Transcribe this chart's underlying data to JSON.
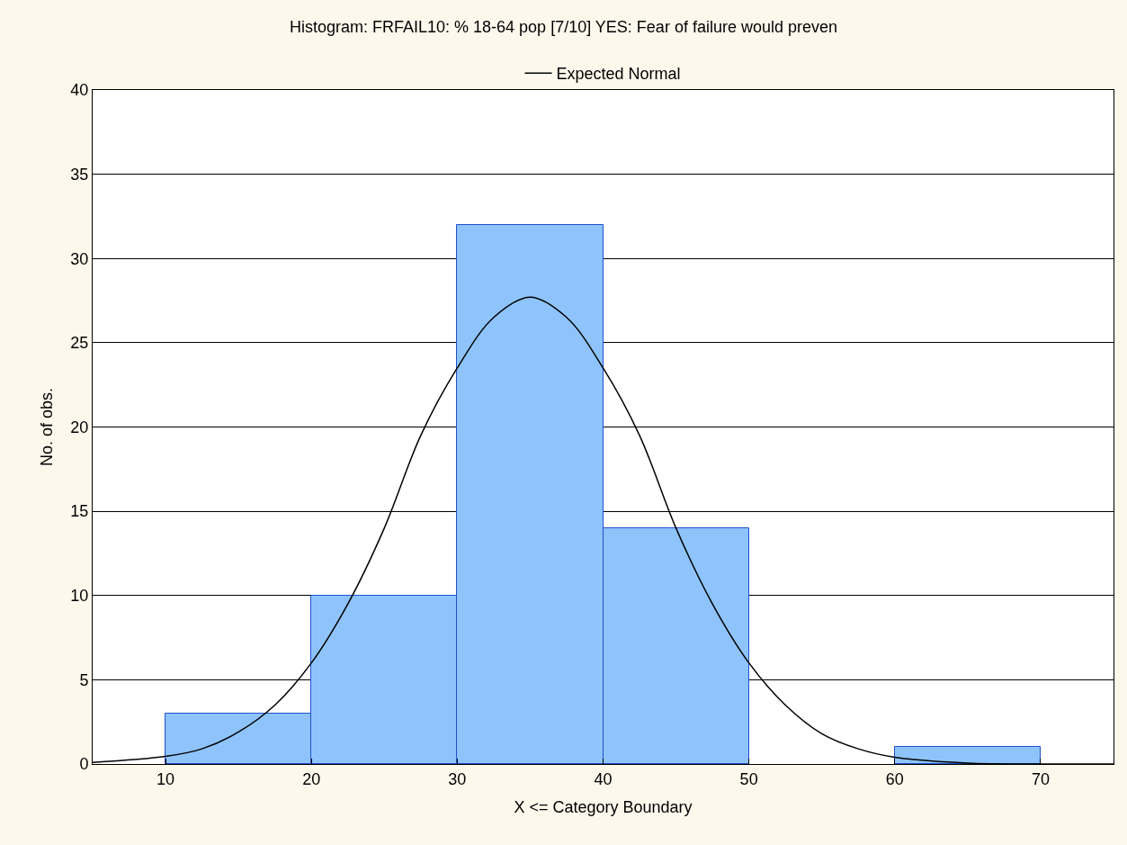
{
  "chart_data": {
    "type": "histogram",
    "title": "Histogram: FRFAIL10: % 18-64 pop [7/10] YES: Fear of failure would preven",
    "xlabel": "X <= Category Boundary",
    "ylabel": "No. of obs.",
    "bins": [
      10,
      20,
      30,
      40,
      50,
      60,
      70
    ],
    "values": [
      3,
      10,
      32,
      14,
      0,
      1
    ],
    "color": "#8ec4fb",
    "series": [
      {
        "type": "line",
        "name": "Expected Normal",
        "color": "#000000",
        "x": [
          5,
          10,
          12.5,
          15,
          17.5,
          20,
          22.5,
          25,
          27.5,
          30,
          32.5,
          35,
          37.5,
          40,
          42.5,
          45,
          47.5,
          50,
          52.5,
          55,
          57.5,
          60,
          65,
          70,
          75
        ],
        "values": [
          0.1,
          0.45,
          0.9,
          1.9,
          3.5,
          6,
          9.5,
          14,
          19.5,
          23.5,
          26.5,
          27.7,
          26.5,
          23.5,
          19.5,
          14,
          9.5,
          6,
          3.5,
          1.8,
          0.9,
          0.4,
          0.05,
          0,
          0
        ]
      }
    ],
    "xlim": [
      5,
      75
    ],
    "xticks": [
      10,
      20,
      30,
      40,
      50,
      60,
      70
    ],
    "ylim": [
      0,
      40
    ],
    "yticks": [
      0,
      5,
      10,
      15,
      20,
      25,
      30,
      35,
      40
    ],
    "grid": "y",
    "legend": "top"
  }
}
